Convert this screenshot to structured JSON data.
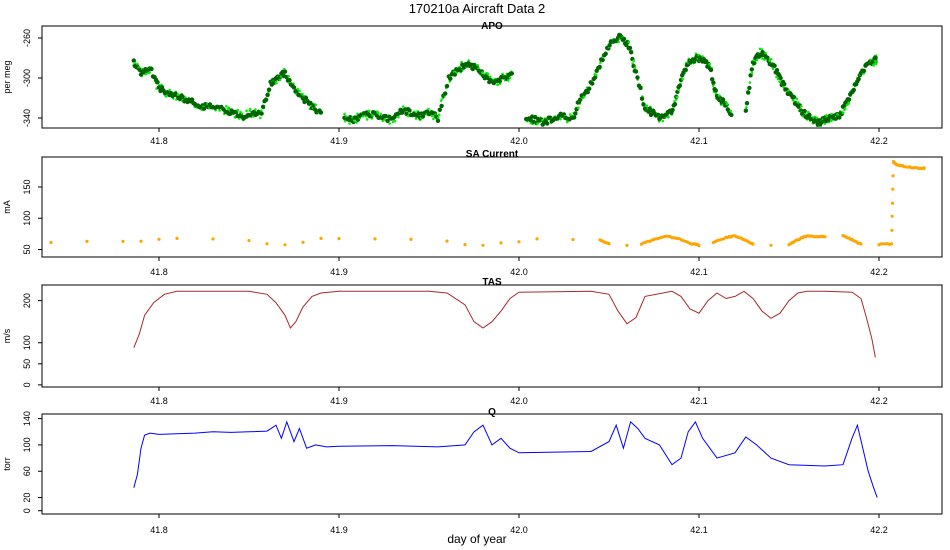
{
  "figure": {
    "title": "170210a   Aircraft Data 2",
    "xlabel": "day of year"
  },
  "chart_data": [
    {
      "type": "scatter",
      "title": "APO",
      "ylabel": "per meg",
      "xlim": [
        41.735,
        42.235
      ],
      "ylim": [
        -350,
        -248
      ],
      "yticks": [
        -260,
        -300,
        -340
      ],
      "xticks": [
        "41.8",
        "41.9",
        "42.0",
        "42.1",
        "42.2"
      ],
      "colors": {
        "points_outer": "#00ee00",
        "points_inner": "#006400"
      },
      "series": [
        {
          "x": [
            41.786,
            41.79,
            41.795,
            41.8,
            41.805,
            41.81,
            41.815,
            41.82,
            41.825,
            41.83,
            41.837,
            41.842,
            41.847,
            41.852,
            41.857,
            41.862,
            41.866,
            41.87,
            41.875,
            41.88,
            41.885,
            41.89,
            41.903,
            41.908,
            41.913,
            41.918,
            41.924,
            41.93,
            41.935,
            41.94,
            41.945,
            41.95,
            41.955,
            41.961,
            41.966,
            41.971,
            41.976,
            41.981,
            41.986,
            41.991,
            41.996,
            42.004,
            42.009,
            42.014,
            42.019,
            42.024,
            42.03,
            42.034,
            42.039,
            42.044,
            42.049,
            42.053,
            42.057,
            42.061,
            42.065,
            42.07,
            42.074,
            42.078,
            42.082,
            42.086,
            42.09,
            42.094,
            42.098,
            42.102,
            42.106,
            42.11,
            42.114,
            42.118,
            42.126,
            42.13,
            42.134,
            42.138,
            42.142,
            42.146,
            42.15,
            42.154,
            42.158,
            42.162,
            42.166,
            42.17,
            42.174,
            42.178,
            42.182,
            42.186,
            42.19,
            42.195,
            42.198
          ],
          "y": [
            -285,
            -295,
            -290,
            -310,
            -315,
            -318,
            -322,
            -325,
            -328,
            -330,
            -332,
            -335,
            -338,
            -334,
            -336,
            -305,
            -300,
            -295,
            -310,
            -320,
            -328,
            -336,
            -340,
            -342,
            -338,
            -336,
            -340,
            -342,
            -332,
            -335,
            -338,
            -334,
            -340,
            -300,
            -292,
            -285,
            -290,
            -298,
            -305,
            -300,
            -298,
            -340,
            -342,
            -345,
            -340,
            -338,
            -342,
            -320,
            -310,
            -290,
            -270,
            -262,
            -258,
            -268,
            -295,
            -330,
            -335,
            -340,
            -338,
            -330,
            -300,
            -285,
            -280,
            -282,
            -288,
            -320,
            -325,
            -335,
            -330,
            -285,
            -275,
            -280,
            -290,
            -305,
            -315,
            -325,
            -335,
            -340,
            -345,
            -342,
            -340,
            -338,
            -325,
            -310,
            -295,
            -285,
            -282
          ]
        }
      ]
    },
    {
      "type": "scatter",
      "title": "SA Current",
      "ylabel": "mA",
      "xlim": [
        41.735,
        42.235
      ],
      "ylim": [
        38,
        198
      ],
      "yticks": [
        50,
        100,
        150
      ],
      "xticks": [
        "41.8",
        "41.9",
        "42.0",
        "42.1",
        "42.2"
      ],
      "colors": {
        "points": "#ffa500"
      },
      "series": [
        {
          "x": [
            41.74,
            41.76,
            41.78,
            41.79,
            41.8,
            41.81,
            41.83,
            41.85,
            41.86,
            41.87,
            41.88,
            41.89,
            41.9,
            41.92,
            41.94,
            41.96,
            41.97,
            41.98,
            41.99,
            42.0,
            42.01,
            42.03,
            42.045,
            42.05,
            42.06,
            42.068,
            42.075,
            42.082,
            42.088,
            42.095,
            42.1,
            42.108,
            42.115,
            42.12,
            42.125,
            42.13,
            42.14,
            42.15,
            42.155,
            42.16,
            42.165,
            42.17,
            42.18,
            42.185,
            42.19,
            42.2,
            42.207,
            42.208,
            42.21,
            42.214,
            42.22,
            42.225
          ],
          "y": [
            62,
            63,
            63,
            64,
            66,
            68,
            66,
            65,
            60,
            58,
            61,
            67,
            68,
            67,
            66,
            64,
            58,
            57,
            60,
            63,
            67,
            66,
            65,
            60,
            57,
            59,
            66,
            71,
            68,
            60,
            57,
            61,
            69,
            72,
            66,
            58,
            56,
            58,
            66,
            72,
            70,
            71,
            72,
            66,
            58,
            58,
            59,
            190,
            186,
            183,
            181,
            180
          ]
        }
      ]
    },
    {
      "type": "line",
      "title": "TAS",
      "ylabel": "m/s",
      "xlim": [
        41.735,
        42.235
      ],
      "ylim": [
        -5,
        237
      ],
      "yticks": [
        0,
        50,
        100,
        200
      ],
      "xticks": [
        "41.8",
        "41.9",
        "42.0",
        "42.1",
        "42.2"
      ],
      "colors": {
        "line": "#a52a2a"
      },
      "series": [
        {
          "x": [
            41.786,
            41.789,
            41.792,
            41.797,
            41.803,
            41.81,
            41.82,
            41.85,
            41.86,
            41.865,
            41.87,
            41.873,
            41.876,
            41.88,
            41.885,
            41.89,
            41.9,
            41.95,
            41.96,
            41.97,
            41.975,
            41.98,
            41.985,
            41.99,
            41.995,
            42.0,
            42.04,
            42.05,
            42.055,
            42.06,
            42.065,
            42.07,
            42.085,
            42.09,
            42.095,
            42.1,
            42.105,
            42.11,
            42.115,
            42.12,
            42.125,
            42.13,
            42.135,
            42.14,
            42.145,
            42.15,
            42.155,
            42.16,
            42.17,
            42.185,
            42.19,
            42.193,
            42.196,
            42.198
          ],
          "y": [
            88,
            120,
            165,
            195,
            215,
            222,
            222,
            222,
            215,
            195,
            165,
            135,
            150,
            185,
            210,
            218,
            222,
            222,
            218,
            190,
            150,
            135,
            150,
            175,
            205,
            220,
            222,
            215,
            175,
            145,
            160,
            210,
            222,
            210,
            180,
            170,
            200,
            218,
            205,
            210,
            222,
            205,
            175,
            158,
            170,
            200,
            218,
            222,
            222,
            220,
            205,
            160,
            110,
            65
          ]
        }
      ]
    },
    {
      "type": "line",
      "title": "Q",
      "ylabel": "torr",
      "xlim": [
        41.735,
        42.235
      ],
      "ylim": [
        -5,
        147
      ],
      "yticks": [
        0,
        20,
        60,
        100,
        140
      ],
      "xticks": [
        "41.8",
        "41.9",
        "42.0",
        "42.1",
        "42.2"
      ],
      "colors": {
        "line": "#0000ff"
      },
      "series": [
        {
          "x": [
            41.786,
            41.788,
            41.79,
            41.792,
            41.795,
            41.8,
            41.81,
            41.82,
            41.83,
            41.84,
            41.85,
            41.86,
            41.865,
            41.868,
            41.871,
            41.875,
            41.878,
            41.882,
            41.887,
            41.893,
            41.9,
            41.93,
            41.955,
            41.97,
            41.975,
            41.98,
            41.985,
            41.99,
            41.995,
            42.0,
            42.04,
            42.05,
            42.054,
            42.058,
            42.062,
            42.066,
            42.07,
            42.078,
            42.085,
            42.09,
            42.094,
            42.098,
            42.102,
            42.106,
            42.11,
            42.12,
            42.126,
            42.132,
            42.14,
            42.15,
            42.17,
            42.18,
            42.185,
            42.188,
            42.191,
            42.194,
            42.197,
            42.199
          ],
          "y": [
            35,
            55,
            95,
            115,
            118,
            116,
            117,
            118,
            120,
            119,
            120,
            121,
            130,
            110,
            135,
            105,
            125,
            95,
            100,
            97,
            98,
            99,
            97,
            100,
            120,
            130,
            100,
            110,
            95,
            88,
            90,
            105,
            130,
            95,
            135,
            125,
            110,
            100,
            70,
            80,
            120,
            135,
            110,
            95,
            80,
            88,
            112,
            100,
            80,
            70,
            68,
            70,
            110,
            130,
            95,
            60,
            35,
            20
          ]
        }
      ]
    }
  ]
}
